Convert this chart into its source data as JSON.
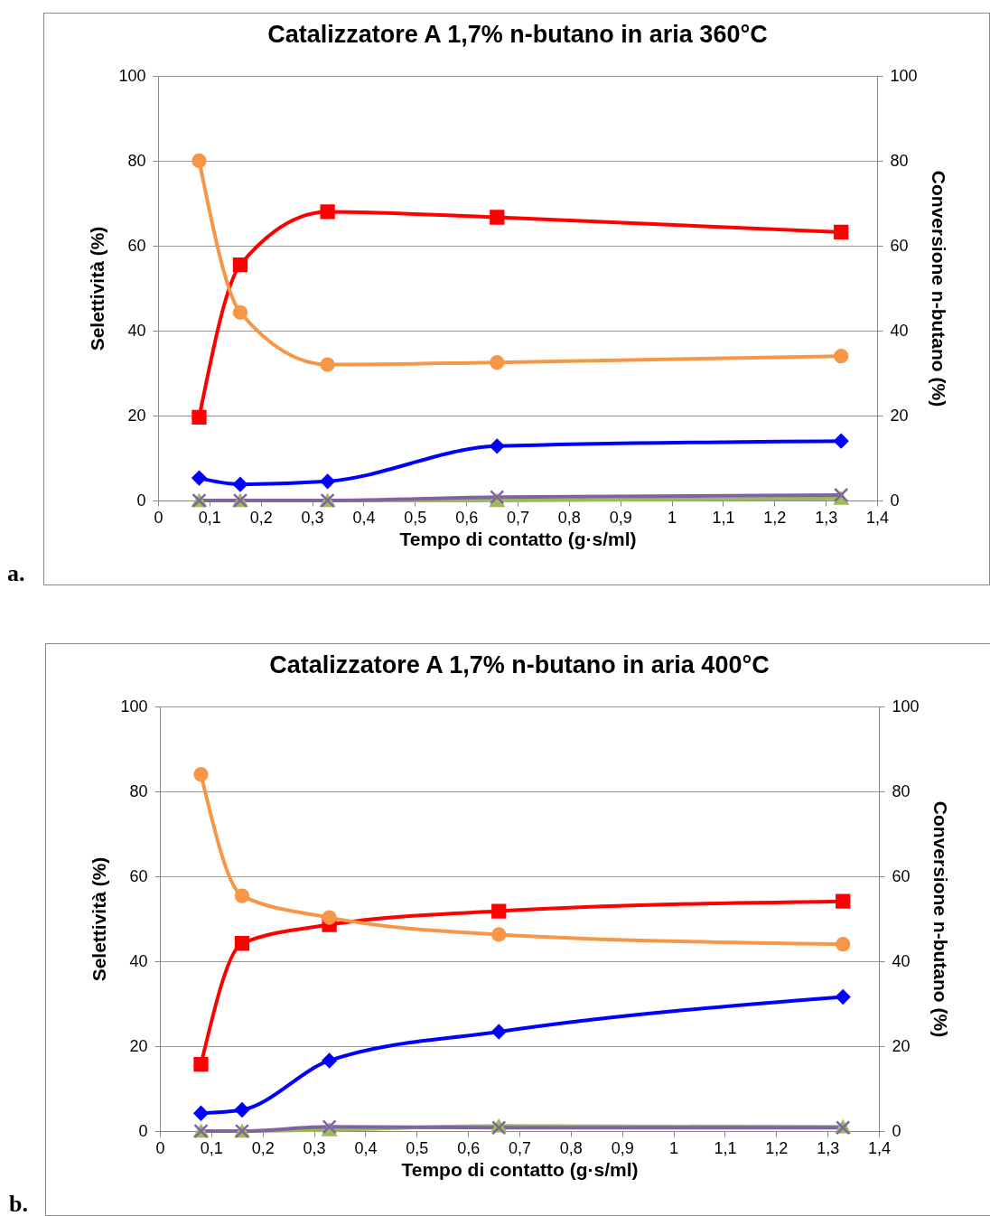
{
  "chart_data": [
    {
      "type": "line",
      "title": "Catalizzatore A 1,7% n-butano in aria 360°C",
      "xlabel": "Tempo di contatto (g·s/ml)",
      "ylabel": "Selettività (%)",
      "y2label": "Conversione n-butano (%)",
      "annotations": [
        "a."
      ],
      "x": [
        0.08,
        0.16,
        0.33,
        0.66,
        1.33
      ],
      "xlim": [
        0,
        1.4
      ],
      "xticks": [
        {
          "value": 0,
          "label": "0"
        },
        {
          "value": 0.1,
          "label": "0,1"
        },
        {
          "value": 0.2,
          "label": "0,2"
        },
        {
          "value": 0.3,
          "label": "0,3"
        },
        {
          "value": 0.4,
          "label": "0,4"
        },
        {
          "value": 0.5,
          "label": "0,5"
        },
        {
          "value": 0.6,
          "label": "0,6"
        },
        {
          "value": 0.7,
          "label": "0,7"
        },
        {
          "value": 0.8,
          "label": "0,8"
        },
        {
          "value": 0.9,
          "label": "0,9"
        },
        {
          "value": 1,
          "label": "1"
        },
        {
          "value": 1.1,
          "label": "1,1"
        },
        {
          "value": 1.2,
          "label": "1,2"
        },
        {
          "value": 1.3,
          "label": "1,3"
        },
        {
          "value": 1.4,
          "label": "1,4"
        }
      ],
      "ylim": [
        0,
        100
      ],
      "yticks": [
        0,
        20,
        40,
        60,
        80,
        100
      ],
      "y2lim": [
        0,
        100
      ],
      "y2ticks": [
        0,
        20,
        40,
        60,
        80,
        100
      ],
      "grid": "y",
      "series": [
        {
          "color": "#0000ff",
          "marker": "diamond",
          "values": [
            5.3,
            3.8,
            4.5,
            12.8,
            14
          ]
        },
        {
          "color": "#ff0000",
          "marker": "square",
          "values": [
            19.6,
            55.5,
            68,
            66.7,
            63.2
          ]
        },
        {
          "color": "#f79646",
          "marker": "circle",
          "axis": "y2",
          "values": [
            80,
            44.3,
            32,
            32.5,
            34
          ]
        },
        {
          "color": "#9bbb59",
          "marker": "triangle",
          "values": [
            0,
            0,
            0,
            0,
            0.5
          ]
        },
        {
          "color": "#8064a2",
          "marker": "cross",
          "values": [
            0,
            0,
            0,
            0.8,
            1.3
          ]
        }
      ]
    },
    {
      "type": "line",
      "title": "Catalizzatore A 1,7% n-butano in aria 400°C",
      "xlabel": "Tempo di contatto (g·s/ml)",
      "ylabel": "Selettività (%)",
      "y2label": "Conversione n-butano (%)",
      "annotations": [
        "b."
      ],
      "x": [
        0.08,
        0.16,
        0.33,
        0.66,
        1.33
      ],
      "xlim": [
        0,
        1.4
      ],
      "xticks": [
        {
          "value": 0,
          "label": "0"
        },
        {
          "value": 0.1,
          "label": "0,1"
        },
        {
          "value": 0.2,
          "label": "0,2"
        },
        {
          "value": 0.3,
          "label": "0,3"
        },
        {
          "value": 0.4,
          "label": "0,4"
        },
        {
          "value": 0.5,
          "label": "0,5"
        },
        {
          "value": 0.6,
          "label": "0,6"
        },
        {
          "value": 0.7,
          "label": "0,7"
        },
        {
          "value": 0.8,
          "label": "0,8"
        },
        {
          "value": 0.9,
          "label": "0,9"
        },
        {
          "value": 1,
          "label": "1"
        },
        {
          "value": 1.1,
          "label": "1,1"
        },
        {
          "value": 1.2,
          "label": "1,2"
        },
        {
          "value": 1.3,
          "label": "1,3"
        },
        {
          "value": 1.4,
          "label": "1,4"
        }
      ],
      "ylim": [
        0,
        100
      ],
      "yticks": [
        0,
        20,
        40,
        60,
        80,
        100
      ],
      "y2lim": [
        0,
        100
      ],
      "y2ticks": [
        0,
        20,
        40,
        60,
        80,
        100
      ],
      "grid": "y",
      "series": [
        {
          "color": "#0000ff",
          "marker": "diamond",
          "values": [
            4.2,
            5,
            16.6,
            23.4,
            31.6
          ]
        },
        {
          "color": "#ff0000",
          "marker": "square",
          "values": [
            15.7,
            44.2,
            48.6,
            51.8,
            54.1
          ]
        },
        {
          "color": "#f79646",
          "marker": "circle",
          "axis": "y2",
          "values": [
            84,
            55.4,
            50.3,
            46.3,
            44
          ]
        },
        {
          "color": "#9bbb59",
          "marker": "triangle",
          "values": [
            0,
            0,
            0.3,
            1.2,
            1
          ]
        },
        {
          "color": "#8064a2",
          "marker": "cross",
          "values": [
            0,
            0,
            1,
            0.8,
            0.8
          ]
        }
      ]
    }
  ]
}
